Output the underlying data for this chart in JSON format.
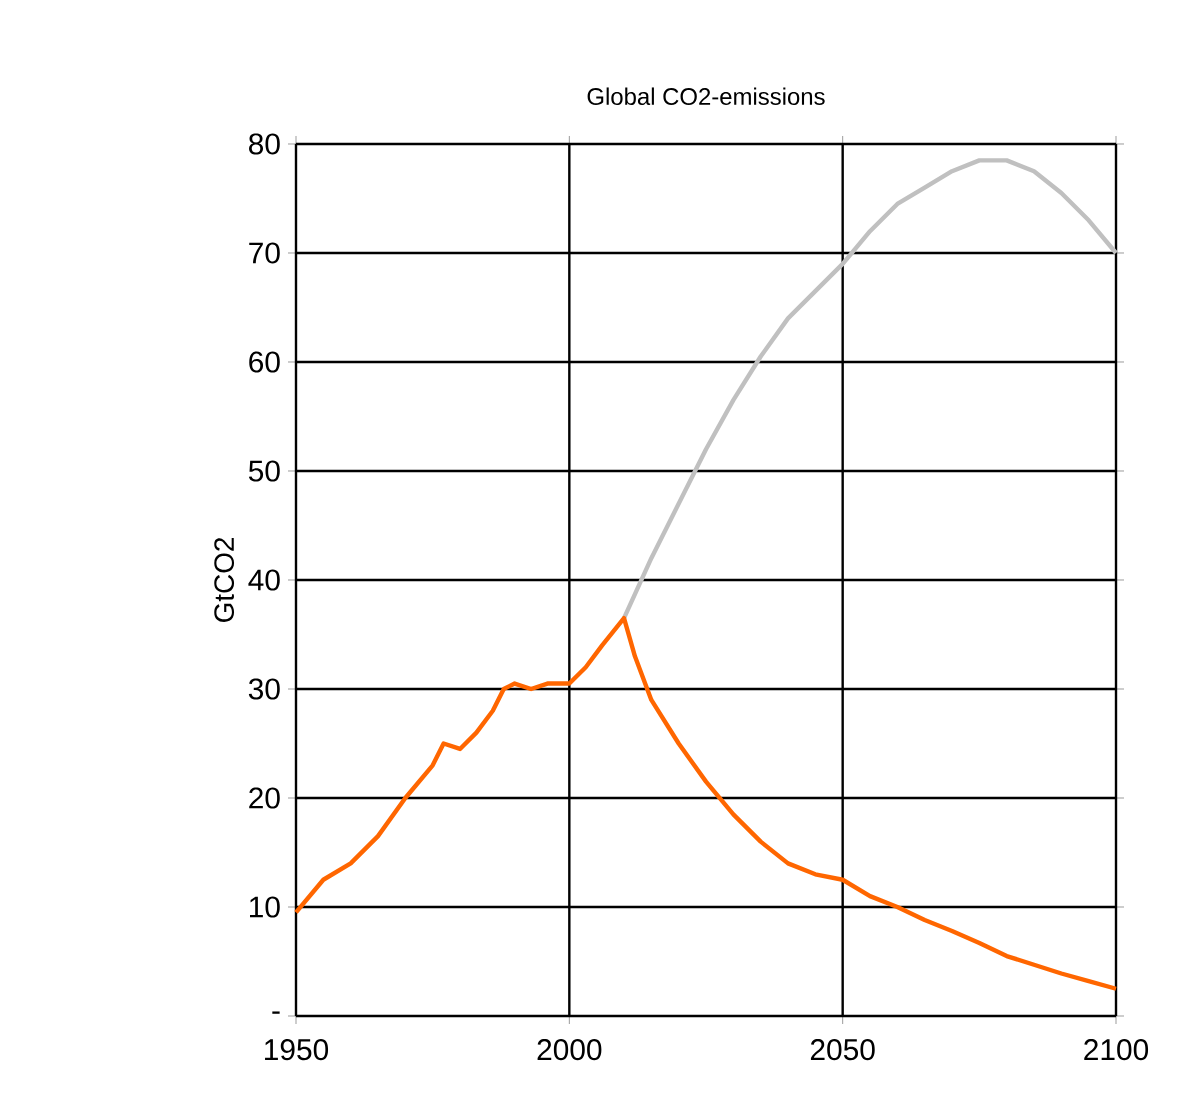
{
  "chart_data": {
    "type": "line",
    "title": "Global CO2-emissions",
    "ylabel": "GtCO2",
    "xlim": [
      1950,
      2100
    ],
    "xticks": [
      1950,
      2000,
      2050,
      2100
    ],
    "ylim": [
      0,
      80
    ],
    "yticks": [
      {
        "value": 0,
        "label": "-"
      },
      10,
      20,
      30,
      40,
      50,
      60,
      70,
      80
    ],
    "grid": true,
    "marker": "none",
    "line_style": "solid",
    "series": [
      {
        "color": "#c0c0c0",
        "x": [
          2010,
          2015,
          2020,
          2025,
          2030,
          2035,
          2040,
          2045,
          2050,
          2055,
          2060,
          2065,
          2070,
          2075,
          2080,
          2085,
          2090,
          2095,
          2100
        ],
        "values": [
          36.5,
          42,
          47,
          52,
          56.5,
          60.5,
          64,
          66.5,
          69,
          72,
          74.5,
          76,
          77.5,
          78.5,
          78.5,
          77.5,
          75.5,
          73,
          70
        ]
      },
      {
        "color": "#ff6600",
        "x": [
          1950,
          1955,
          1960,
          1965,
          1970,
          1975,
          1977,
          1980,
          1983,
          1986,
          1988,
          1990,
          1993,
          1996,
          2000,
          2003,
          2006,
          2010,
          2012,
          2015,
          2020,
          2025,
          2030,
          2035,
          2040,
          2045,
          2050,
          2055,
          2060,
          2065,
          2070,
          2075,
          2080,
          2085,
          2090,
          2095,
          2100
        ],
        "values": [
          9.5,
          12.5,
          14,
          16.5,
          20,
          23,
          25,
          24.5,
          26,
          28,
          30,
          30.5,
          30,
          30.5,
          30.5,
          32,
          34,
          36.5,
          33,
          29,
          25,
          21.5,
          18.5,
          16,
          14,
          13,
          12.5,
          11,
          10,
          8.8,
          7.8,
          6.7,
          5.5,
          4.7,
          3.9,
          3.2,
          2.5
        ]
      }
    ]
  }
}
